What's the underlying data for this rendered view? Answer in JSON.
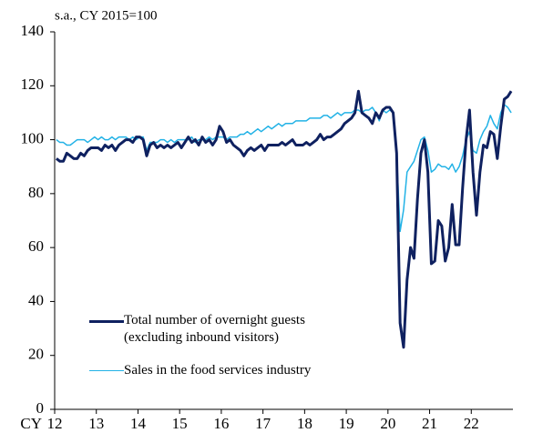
{
  "chart_data": {
    "type": "line",
    "subtitle": "s.a., CY 2015=100",
    "xlabel": "CY",
    "categories": [
      "12",
      null,
      null,
      null,
      null,
      null,
      null,
      null,
      null,
      null,
      null,
      null,
      "13",
      null,
      null,
      null,
      null,
      null,
      null,
      null,
      null,
      null,
      null,
      null,
      "14",
      null,
      null,
      null,
      null,
      null,
      null,
      null,
      null,
      null,
      null,
      null,
      "15",
      null,
      null,
      null,
      null,
      null,
      null,
      null,
      null,
      null,
      null,
      null,
      "16",
      null,
      null,
      null,
      null,
      null,
      null,
      null,
      null,
      null,
      null,
      null,
      "17",
      null,
      null,
      null,
      null,
      null,
      null,
      null,
      null,
      null,
      null,
      null,
      "18",
      null,
      null,
      null,
      null,
      null,
      null,
      null,
      null,
      null,
      null,
      null,
      "19",
      null,
      null,
      null,
      null,
      null,
      null,
      null,
      null,
      null,
      null,
      null,
      "20",
      null,
      null,
      null,
      null,
      null,
      null,
      null,
      null,
      null,
      null,
      null,
      "21",
      null,
      null,
      null,
      null,
      null,
      null,
      null,
      null,
      null,
      null,
      null,
      "22",
      null,
      null,
      null,
      null,
      null,
      null,
      null,
      null,
      null,
      null,
      null
    ],
    "ylim": [
      0,
      140
    ],
    "yticks": [
      0,
      20,
      40,
      60,
      80,
      100,
      120,
      140
    ],
    "grid": false,
    "legend": "lower-left",
    "series": [
      {
        "name": "Total number of overnight guests\n(excluding inbound visitors)",
        "color": "#0f2160",
        "width": 3,
        "values": [
          93,
          92,
          92,
          95,
          94,
          93,
          93,
          95,
          94,
          96,
          97,
          97,
          97,
          96,
          98,
          97,
          98,
          96,
          98,
          99,
          100,
          100,
          99,
          101,
          101,
          100,
          94,
          98,
          99,
          97,
          98,
          97,
          98,
          97,
          98,
          99,
          97,
          99,
          101,
          99,
          100,
          98,
          101,
          99,
          100,
          98,
          100,
          105,
          103,
          99,
          100,
          98,
          97,
          96,
          94,
          96,
          97,
          96,
          97,
          98,
          96,
          98,
          98,
          98,
          98,
          99,
          98,
          99,
          100,
          98,
          98,
          98,
          99,
          98,
          99,
          100,
          102,
          100,
          101,
          101,
          102,
          103,
          104,
          106,
          107,
          108,
          110,
          118,
          110,
          109,
          108,
          106,
          110,
          108,
          111,
          112,
          112,
          110,
          95,
          32,
          23,
          48,
          60,
          56,
          78,
          95,
          100,
          88,
          54,
          55,
          70,
          68,
          55,
          60,
          76,
          61,
          61,
          82,
          100,
          111,
          88,
          72,
          88,
          98,
          97,
          103,
          102,
          93,
          105,
          115,
          116,
          118
        ]
      },
      {
        "name": "Sales in the food services industry",
        "color": "#22b2e6",
        "width": 1.5,
        "values": [
          100,
          99,
          99,
          98,
          98,
          99,
          100,
          100,
          100,
          99,
          100,
          101,
          100,
          101,
          100,
          100,
          101,
          100,
          101,
          101,
          101,
          100,
          101,
          100,
          101,
          101,
          96,
          99,
          99,
          99,
          100,
          100,
          99,
          100,
          99,
          100,
          100,
          100,
          100,
          101,
          99,
          100,
          100,
          100,
          101,
          100,
          101,
          101,
          101,
          100,
          101,
          101,
          101,
          102,
          102,
          103,
          102,
          103,
          104,
          103,
          104,
          105,
          104,
          105,
          106,
          105,
          106,
          106,
          106,
          107,
          107,
          107,
          107,
          108,
          108,
          108,
          108,
          109,
          109,
          108,
          109,
          110,
          109,
          110,
          110,
          110,
          111,
          111,
          110,
          111,
          111,
          112,
          110,
          107,
          111,
          110,
          111,
          110,
          95,
          66,
          74,
          88,
          90,
          92,
          96,
          100,
          101,
          96,
          88,
          89,
          91,
          90,
          90,
          89,
          91,
          88,
          90,
          94,
          100,
          103,
          96,
          95,
          100,
          103,
          105,
          109,
          106,
          104,
          110,
          113,
          112,
          110
        ]
      }
    ]
  }
}
